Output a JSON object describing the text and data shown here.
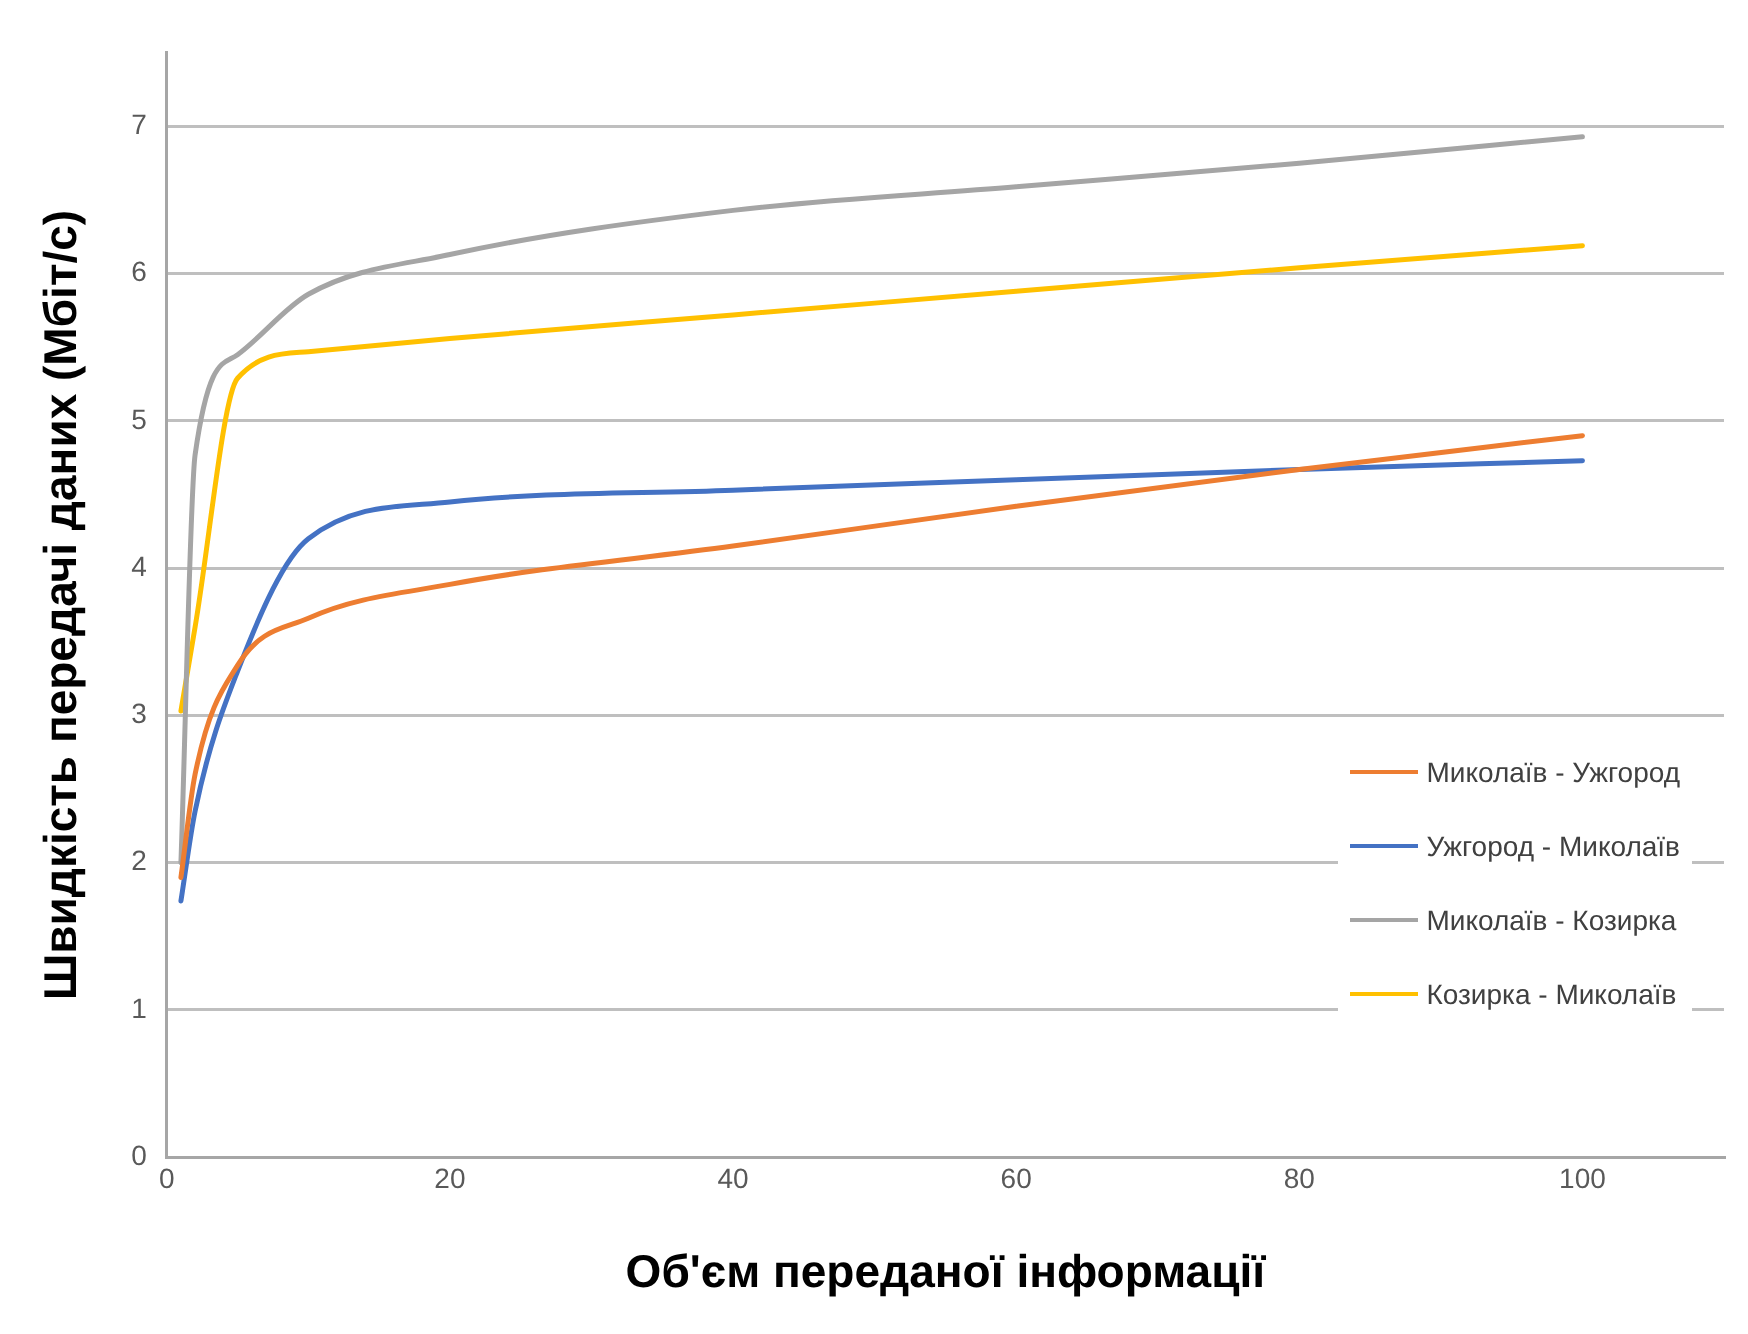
{
  "chart_data": {
    "type": "line",
    "xlabel": "Об'єм переданої інформації",
    "ylabel": "Швидкість передачі даних (Мбіт/с)",
    "x": [
      1,
      2,
      5,
      10,
      20,
      40,
      60,
      80,
      100
    ],
    "series": [
      {
        "name": "Миколаїв - Ужгород",
        "color": "#ed7d31",
        "values": [
          1.9,
          2.6,
          3.34,
          3.66,
          3.89,
          4.15,
          4.42,
          4.67,
          4.9
        ]
      },
      {
        "name": "Ужгород - Миколаїв",
        "color": "#4472c4",
        "values": [
          1.74,
          2.35,
          3.3,
          4.2,
          4.45,
          4.53,
          4.6,
          4.67,
          4.73
        ]
      },
      {
        "name": "Миколаїв - Козирка",
        "color": "#a5a5a5",
        "values": [
          2.0,
          4.77,
          5.45,
          5.86,
          6.13,
          6.43,
          6.59,
          6.75,
          6.93
        ]
      },
      {
        "name": "Козирка - Миколаїв",
        "color": "#ffc000",
        "values": [
          3.03,
          3.6,
          5.29,
          5.47,
          5.56,
          5.72,
          5.88,
          6.04,
          6.19
        ]
      }
    ],
    "xlim": [
      0,
      110
    ],
    "xticks": [
      0,
      20,
      40,
      60,
      80,
      100
    ],
    "ylim": [
      0,
      7.5
    ],
    "yticks": [
      0,
      1,
      2,
      3,
      4,
      5,
      6,
      7
    ],
    "grid": "y",
    "legend": "right",
    "marker": "none",
    "line_style": "solid"
  }
}
